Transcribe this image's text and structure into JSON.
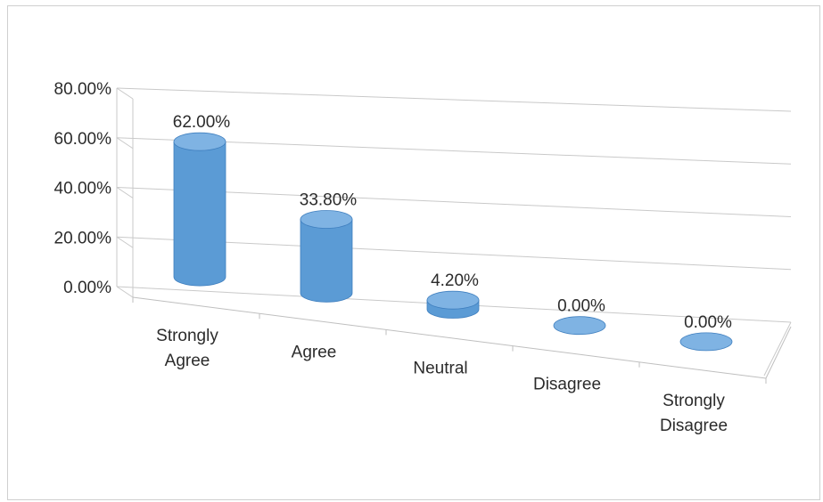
{
  "chart_data": {
    "type": "bar",
    "style": "3d-cylinder",
    "categories": [
      "Strongly Agree",
      "Agree",
      "Neutral",
      "Disagree",
      "Strongly Disagree"
    ],
    "values": [
      62.0,
      33.8,
      4.2,
      0.0,
      0.0
    ],
    "data_labels": [
      "62.00%",
      "33.80%",
      "4.20%",
      "0.00%",
      "0.00%"
    ],
    "y_ticks": [
      {
        "value": 0,
        "label": "0.00%"
      },
      {
        "value": 20,
        "label": "20.00%"
      },
      {
        "value": 40,
        "label": "40.00%"
      },
      {
        "value": 60,
        "label": "60.00%"
      },
      {
        "value": 80,
        "label": "80.00%"
      }
    ],
    "ylim": [
      0,
      80
    ],
    "grid": true,
    "legend": "none",
    "bar_color": "#5b9bd5",
    "bar_color_dark": "#3f7fbf",
    "bar_color_top": "#7fb3e3",
    "grid_color": "#c9c9c9"
  }
}
